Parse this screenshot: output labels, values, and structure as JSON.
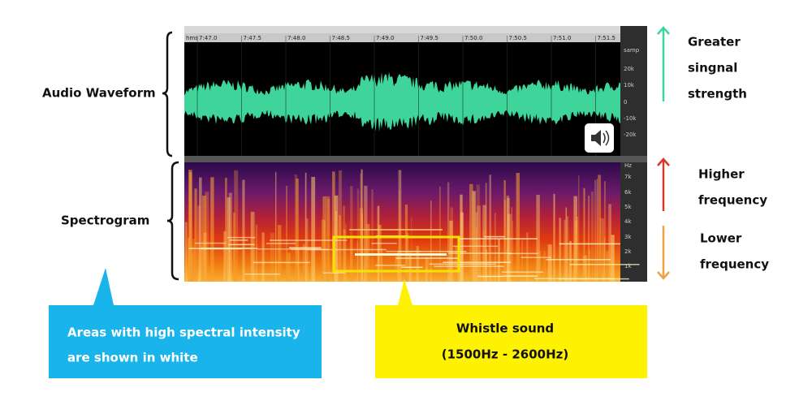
{
  "labels": {
    "audio_waveform": "Audio Waveform",
    "spectrogram": "Spectrogram"
  },
  "right_labels": {
    "signal": [
      "Greater",
      "singnal",
      "strength"
    ],
    "higher": [
      "Higher",
      "frequency"
    ],
    "lower": [
      "Lower",
      "frequency"
    ]
  },
  "callouts": {
    "spectral": [
      "Areas with high spectral intensity",
      "are shown in white"
    ],
    "whistle": [
      "Whistle sound",
      "(1500Hz - 2600Hz)"
    ]
  },
  "screenshot": {
    "time_ruler": [
      "hms",
      "7:47.0",
      "7:47.5",
      "7:48.0",
      "7:48.5",
      "7:49.0",
      "7:49.5",
      "7:50.0",
      "7:50.5",
      "7:51.0",
      "7:51.5"
    ],
    "amplitude_axis": [
      "samp",
      "20k",
      "10k",
      "0",
      "-10k",
      "-20k"
    ],
    "frequency_axis": [
      "Hz",
      "7k",
      "6k",
      "5k",
      "4k",
      "3k",
      "2k",
      "1k"
    ]
  }
}
